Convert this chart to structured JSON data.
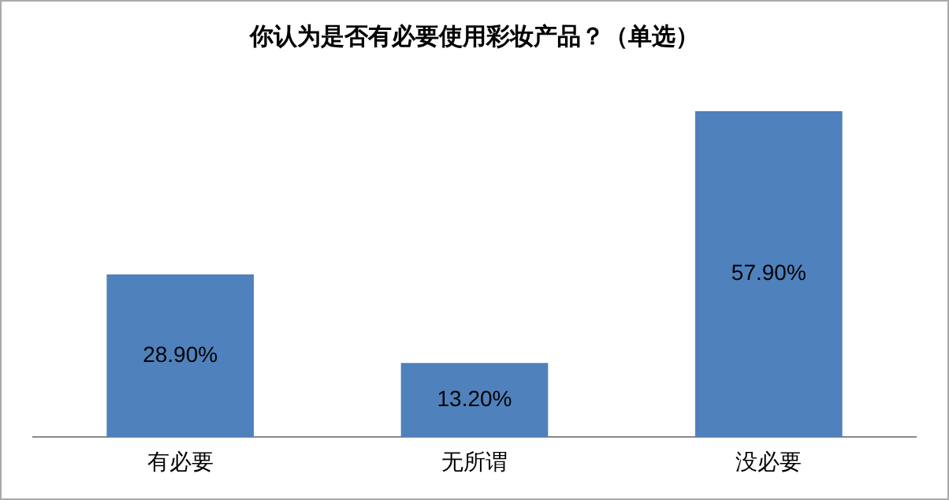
{
  "chart_data": {
    "type": "bar",
    "title": "你认为是否有必要使用彩妆产品？（单选）",
    "categories": [
      "有必要",
      "无所谓",
      "没必要"
    ],
    "values": [
      28.9,
      13.2,
      57.9
    ],
    "value_labels": [
      "28.90%",
      "13.20%",
      "57.90%"
    ],
    "color": "#4f81bd",
    "grid": false,
    "legend": false
  }
}
